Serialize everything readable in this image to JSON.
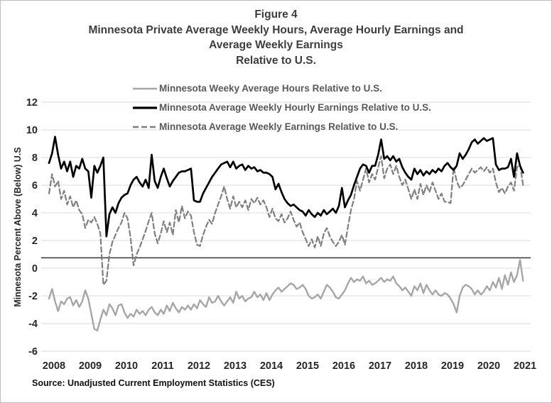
{
  "figure": {
    "title_lines": [
      "Figure 4",
      "Minnesota Private Average Weekly Hours, Average Hourly Earnings and",
      "Average Weekly Earnings",
      "Relative to U.S."
    ],
    "source": "Source: Unadjusted Current Employment Statistics (CES)"
  },
  "chart_data": {
    "type": "line",
    "title": "Figure 4: Minnesota Private Average Weekly Hours, Average Hourly Earnings and Average Weekly Earnings Relative to U.S.",
    "ylabel": "Minnesota Percent Above (Below) U.S",
    "x_unit": "monthly",
    "x_range": "Jan 2008 - Feb 2021",
    "x_tick_labels": [
      "2008",
      "2009",
      "2010",
      "2011",
      "2012",
      "2013",
      "2014",
      "2015",
      "2016",
      "2017",
      "2018",
      "2019",
      "2020",
      "2021"
    ],
    "y_ticks": [
      12,
      10,
      8,
      6,
      4,
      2,
      0,
      -2,
      -4,
      -6
    ],
    "ylim": [
      -6,
      12
    ],
    "grid": "horizontal",
    "grid_color": "#d9d9d9",
    "reference_line_y": 0.75,
    "reference_line_color": "#333333",
    "legend_position": "top-left-inside",
    "series": [
      {
        "id": "hours",
        "name": "Minnesota Weeky Average Hours Relative to U.S.",
        "color": "#a6a6a6",
        "line_style": "solid",
        "values": [
          -2.2,
          -1.5,
          -2.4,
          -3.1,
          -2.4,
          -2.6,
          -2.2,
          -2.1,
          -2.7,
          -2.3,
          -2.8,
          -2.4,
          -1.6,
          -2.2,
          -3.3,
          -4.4,
          -4.5,
          -3.7,
          -3.0,
          -3.4,
          -2.6,
          -2.9,
          -3.4,
          -2.7,
          -2.6,
          -3.2,
          -3.6,
          -3.3,
          -3.5,
          -3.0,
          -3.3,
          -3.1,
          -3.4,
          -3.0,
          -2.8,
          -3.2,
          -3.4,
          -3.0,
          -3.3,
          -2.7,
          -3.1,
          -2.5,
          -2.9,
          -3.2,
          -2.8,
          -3.0,
          -2.7,
          -3.0,
          -2.6,
          -2.9,
          -2.3,
          -2.6,
          -2.8,
          -2.1,
          -2.5,
          -2.4,
          -2.0,
          -2.4,
          -2.7,
          -2.4,
          -2.1,
          -2.5,
          -1.7,
          -2.2,
          -2.0,
          -2.4,
          -2.2,
          -2.1,
          -1.7,
          -2.1,
          -1.9,
          -2.3,
          -1.8,
          -2.3,
          -1.9,
          -1.6,
          -1.4,
          -1.7,
          -1.5,
          -1.3,
          -1.1,
          -1.2,
          -1.5,
          -1.4,
          -1.2,
          -1.5,
          -2.0,
          -2.2,
          -2.1,
          -1.9,
          -2.2,
          -1.7,
          -1.2,
          -1.4,
          -1.7,
          -2.1,
          -2.2,
          -1.9,
          -1.6,
          -1.1,
          -0.7,
          -1.0,
          -0.8,
          -0.9,
          -0.6,
          -1.1,
          -0.9,
          -1.2,
          -1.1,
          -0.9,
          -0.7,
          -1.0,
          -0.8,
          -0.9,
          -0.6,
          -1.1,
          -1.3,
          -1.6,
          -1.4,
          -1.7,
          -2.0,
          -1.3,
          -1.6,
          -1.1,
          -1.8,
          -1.2,
          -1.6,
          -1.9,
          -1.6,
          -1.9,
          -2.0,
          -1.8,
          -1.9,
          -2.2,
          -2.6,
          -3.2,
          -2.0,
          -1.4,
          -1.2,
          -1.3,
          -1.5,
          -1.9,
          -1.6,
          -1.9,
          -1.7,
          -1.3,
          -1.6,
          -1.0,
          -1.4,
          -0.7,
          -1.5,
          -0.5,
          -1.2,
          -0.3,
          -1.0,
          -0.5,
          0.6,
          -0.9
        ]
      },
      {
        "id": "hourly_earnings",
        "name": "Minnesota Average Weekly Hourly Earnings Relative to U.S.",
        "color": "#000000",
        "line_style": "solid",
        "values": [
          7.6,
          8.3,
          9.5,
          8.2,
          7.2,
          7.7,
          7.0,
          7.7,
          6.6,
          7.4,
          7.2,
          7.9,
          7.2,
          7.0,
          5.1,
          7.4,
          6.9,
          7.4,
          8.0,
          2.3,
          3.9,
          4.4,
          4.0,
          4.7,
          5.1,
          5.3,
          5.4,
          6.0,
          6.4,
          6.6,
          6.2,
          5.9,
          6.4,
          5.8,
          8.2,
          6.3,
          5.8,
          6.6,
          7.2,
          6.5,
          5.9,
          6.3,
          6.6,
          6.9,
          7.0,
          7.0,
          7.1,
          7.2,
          4.9,
          4.8,
          4.8,
          5.4,
          5.8,
          6.2,
          6.6,
          6.9,
          7.2,
          7.5,
          7.6,
          7.7,
          7.3,
          7.7,
          7.2,
          7.4,
          7.5,
          7.1,
          7.4,
          7.2,
          7.3,
          7.0,
          7.1,
          6.9,
          6.9,
          6.8,
          6.6,
          5.7,
          6.1,
          5.5,
          5.0,
          4.7,
          4.5,
          4.6,
          4.4,
          4.2,
          4.1,
          3.8,
          4.2,
          3.9,
          3.7,
          4.0,
          3.8,
          4.2,
          3.9,
          4.1,
          4.3,
          4.0,
          4.5,
          5.8,
          4.4,
          4.9,
          5.3,
          6.0,
          6.6,
          7.2,
          7.5,
          7.4,
          6.9,
          7.4,
          7.4,
          8.2,
          9.3,
          7.9,
          8.1,
          7.8,
          8.1,
          7.7,
          7.9,
          7.3,
          6.9,
          6.6,
          6.4,
          7.2,
          6.8,
          7.1,
          6.7,
          7.0,
          6.8,
          7.1,
          6.9,
          7.2,
          7.0,
          7.4,
          7.6,
          7.3,
          7.1,
          7.4,
          8.3,
          7.9,
          8.2,
          8.6,
          9.1,
          9.3,
          9.0,
          9.2,
          9.4,
          9.2,
          9.3,
          9.4,
          7.5,
          7.1,
          7.2,
          7.2,
          7.3,
          7.9,
          6.6,
          8.3,
          7.4,
          6.9
        ]
      },
      {
        "id": "weekly_earnings",
        "name": "Minnesota Average Weekly Earnings Relative to U.S.",
        "color": "#7f7f7f",
        "line_style": "dashed",
        "values": [
          5.4,
          6.8,
          5.9,
          6.3,
          5.0,
          5.6,
          4.6,
          5.2,
          4.4,
          4.9,
          4.2,
          3.9,
          2.9,
          3.5,
          3.3,
          3.7,
          3.2,
          2.5,
          -1.2,
          -0.9,
          1.0,
          1.9,
          2.4,
          2.9,
          3.3,
          4.0,
          3.6,
          2.2,
          0.2,
          1.0,
          1.5,
          2.1,
          2.7,
          3.4,
          4.0,
          2.5,
          1.8,
          2.5,
          3.4,
          2.6,
          3.3,
          2.4,
          4.2,
          3.3,
          4.5,
          3.6,
          4.1,
          3.8,
          2.6,
          1.7,
          1.6,
          2.4,
          3.0,
          3.5,
          3.2,
          4.0,
          4.6,
          5.2,
          5.9,
          5.0,
          4.3,
          5.2,
          4.4,
          4.8,
          4.4,
          4.9,
          4.2,
          5.0,
          4.7,
          5.1,
          4.6,
          4.9,
          4.4,
          3.7,
          4.3,
          3.6,
          3.4,
          3.9,
          3.3,
          3.6,
          4.1,
          3.5,
          3.0,
          3.3,
          2.6,
          2.1,
          1.6,
          2.1,
          1.5,
          2.3,
          1.6,
          2.5,
          2.9,
          2.3,
          1.9,
          1.6,
          1.9,
          2.4,
          1.7,
          3.0,
          4.2,
          5.0,
          6.3,
          5.6,
          6.4,
          7.2,
          6.2,
          6.8,
          6.4,
          7.3,
          8.1,
          6.5,
          7.2,
          7.5,
          6.8,
          7.4,
          6.6,
          6.0,
          6.4,
          5.7,
          5.0,
          5.7,
          5.0,
          6.1,
          5.3,
          6.0,
          5.5,
          6.2,
          5.6,
          5.0,
          5.4,
          4.8,
          4.8,
          4.7,
          7.3,
          6.3,
          5.8,
          6.0,
          6.4,
          6.8,
          7.2,
          6.9,
          7.1,
          7.3,
          7.0,
          7.3,
          6.9,
          7.2,
          6.2,
          5.5,
          5.8,
          5.4,
          5.9,
          6.2,
          5.6,
          7.3,
          7.5,
          6.0
        ]
      }
    ]
  }
}
